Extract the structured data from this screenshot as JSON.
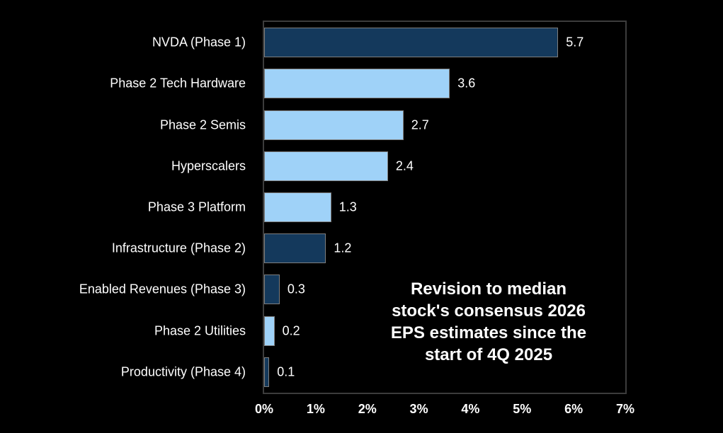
{
  "chart_data": {
    "type": "bar",
    "orientation": "horizontal",
    "categories": [
      "NVDA (Phase 1)",
      "Phase 2 Tech Hardware",
      "Phase 2 Semis",
      "Hyperscalers",
      "Phase 3 Platform",
      "Infrastructure (Phase 2)",
      "Enabled Revenues (Phase 3)",
      "Phase 2 Utilities",
      "Productivity (Phase 4)"
    ],
    "values": [
      5.7,
      3.6,
      2.7,
      2.4,
      1.3,
      1.2,
      0.3,
      0.2,
      0.1
    ],
    "value_labels": [
      "5.7",
      "3.6",
      "2.7",
      "2.4",
      "1.3",
      "1.2",
      "0.3",
      "0.2",
      "0.1"
    ],
    "bar_color_keys": [
      "dark_navy",
      "light_blue",
      "light_blue",
      "light_blue",
      "light_blue",
      "dark_navy",
      "dark_navy",
      "light_blue",
      "dark_navy"
    ],
    "bar_palette": {
      "dark_navy": "#14395c",
      "light_blue": "#9fd2f8"
    },
    "x_ticks": [
      "0%",
      "1%",
      "2%",
      "3%",
      "4%",
      "5%",
      "6%",
      "7%"
    ],
    "xlim": [
      0,
      7
    ],
    "unit": "%",
    "annotation_lines": [
      "Revision to median",
      "stock's consensus 2026",
      "EPS estimates since the",
      "start of 4Q 2025"
    ],
    "styling": {
      "background": "#000000",
      "text_color": "#ffffff",
      "bar_border": "#7f7f7f",
      "plot_border": "#3c3c3c"
    },
    "legend": "none",
    "grid": "off"
  }
}
